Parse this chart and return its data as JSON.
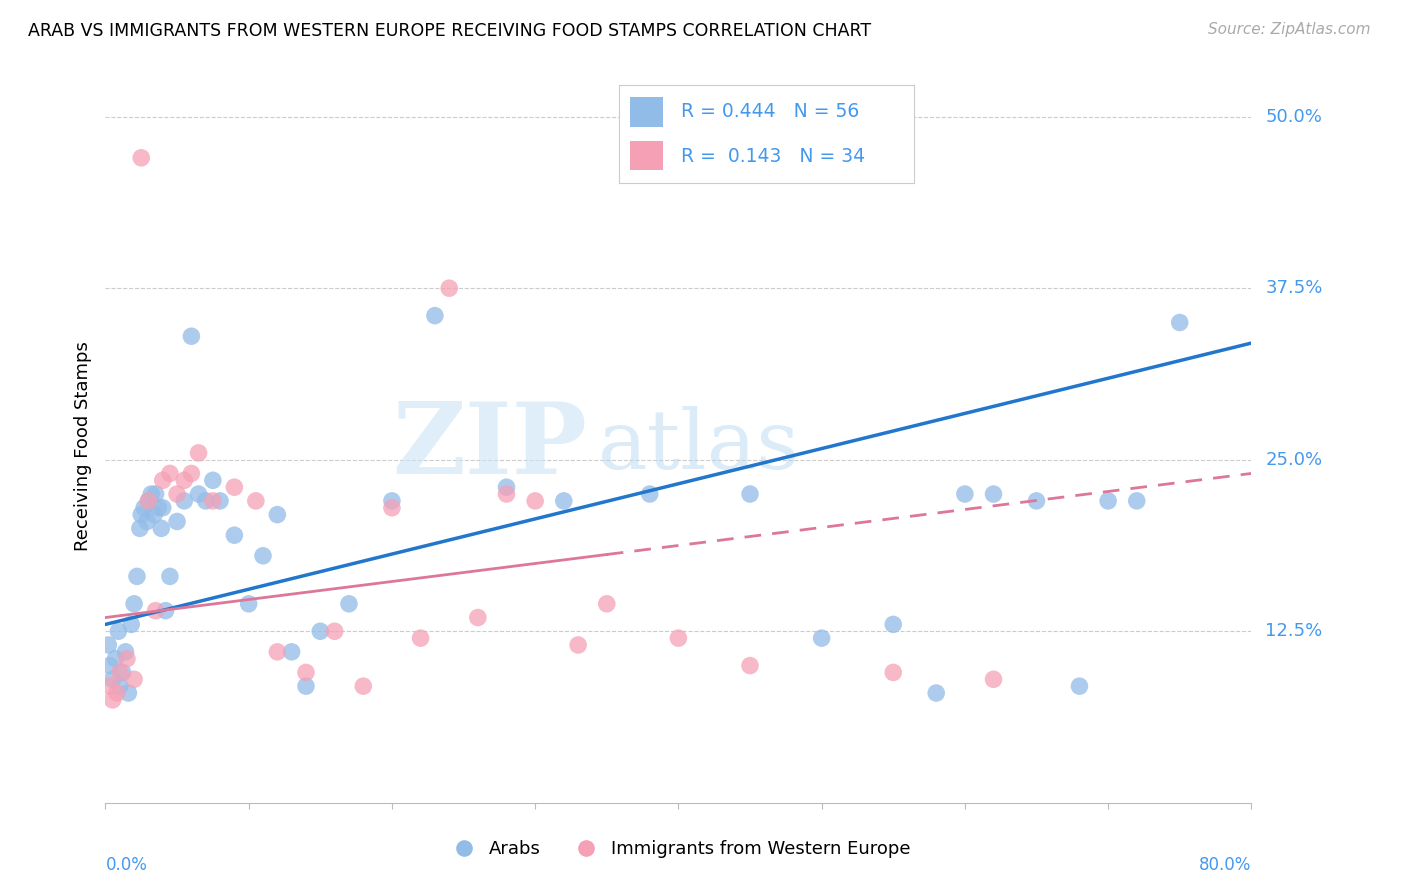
{
  "title": "ARAB VS IMMIGRANTS FROM WESTERN EUROPE RECEIVING FOOD STAMPS CORRELATION CHART",
  "source": "Source: ZipAtlas.com",
  "ylabel": "Receiving Food Stamps",
  "legend_label1": "Arabs",
  "legend_label2": "Immigrants from Western Europe",
  "R1": "0.444",
  "N1": "56",
  "R2": "0.143",
  "N2": "34",
  "watermark_zip": "ZIP",
  "watermark_atlas": "atlas",
  "arab_color": "#92bce8",
  "immig_color": "#f5a0b5",
  "arab_line_color": "#2277cc",
  "immig_line_color": "#dd7799",
  "arab_scatter_x": [
    0.2,
    0.3,
    0.5,
    0.7,
    0.9,
    1.0,
    1.2,
    1.4,
    1.6,
    1.8,
    2.0,
    2.2,
    2.4,
    2.5,
    2.7,
    2.9,
    3.0,
    3.2,
    3.4,
    3.5,
    3.7,
    3.9,
    4.0,
    4.2,
    4.5,
    5.0,
    5.5,
    6.0,
    6.5,
    7.0,
    7.5,
    8.0,
    9.0,
    10.0,
    11.0,
    12.0,
    13.0,
    14.0,
    15.0,
    17.0,
    20.0,
    23.0,
    28.0,
    32.0,
    38.0,
    45.0,
    50.0,
    55.0,
    58.0,
    60.0,
    62.0,
    65.0,
    68.0,
    70.0,
    72.0,
    75.0
  ],
  "arab_scatter_y": [
    11.5,
    10.0,
    9.0,
    10.5,
    12.5,
    8.5,
    9.5,
    11.0,
    8.0,
    13.0,
    14.5,
    16.5,
    20.0,
    21.0,
    21.5,
    20.5,
    22.0,
    22.5,
    21.0,
    22.5,
    21.5,
    20.0,
    21.5,
    14.0,
    16.5,
    20.5,
    22.0,
    34.0,
    22.5,
    22.0,
    23.5,
    22.0,
    19.5,
    14.5,
    18.0,
    21.0,
    11.0,
    8.5,
    12.5,
    14.5,
    22.0,
    35.5,
    23.0,
    22.0,
    22.5,
    22.5,
    12.0,
    13.0,
    8.0,
    22.5,
    22.5,
    22.0,
    8.5,
    22.0,
    22.0,
    35.0
  ],
  "immig_scatter_x": [
    0.3,
    0.5,
    0.8,
    1.0,
    1.5,
    2.0,
    2.5,
    3.0,
    3.5,
    4.0,
    4.5,
    5.0,
    5.5,
    6.0,
    6.5,
    7.5,
    9.0,
    10.5,
    12.0,
    14.0,
    16.0,
    18.0,
    20.0,
    22.0,
    24.0,
    26.0,
    28.0,
    30.0,
    33.0,
    35.0,
    40.0,
    45.0,
    55.0,
    62.0
  ],
  "immig_scatter_y": [
    8.5,
    7.5,
    8.0,
    9.5,
    10.5,
    9.0,
    47.0,
    22.0,
    14.0,
    23.5,
    24.0,
    22.5,
    23.5,
    24.0,
    25.5,
    22.0,
    23.0,
    22.0,
    11.0,
    9.5,
    12.5,
    8.5,
    21.5,
    12.0,
    37.5,
    13.5,
    22.5,
    22.0,
    11.5,
    14.5,
    12.0,
    10.0,
    9.5,
    9.0
  ],
  "arab_line_x0": 0.0,
  "arab_line_y0": 13.0,
  "arab_line_x1": 80.0,
  "arab_line_y1": 33.5,
  "immig_line_x0": 0.0,
  "immig_line_y0": 13.5,
  "immig_line_x1": 80.0,
  "immig_line_y1": 24.0,
  "immig_solid_end_x": 35.0,
  "xmin": 0.0,
  "xmax": 80.0,
  "ymin": 0.0,
  "ymax": 52.0,
  "ytick_vals": [
    12.5,
    25.0,
    37.5,
    50.0
  ]
}
